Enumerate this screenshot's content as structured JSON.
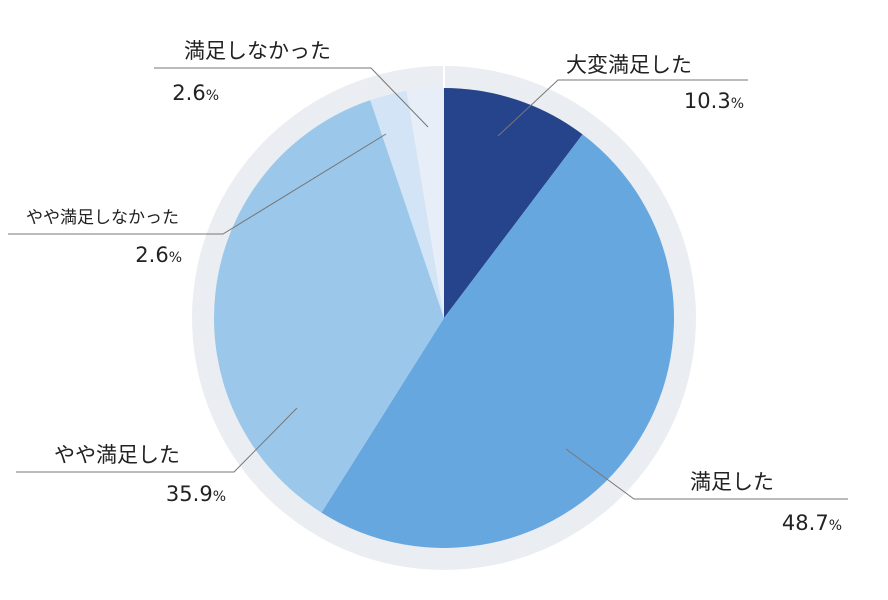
{
  "chart_data": {
    "type": "pie",
    "start_angle_deg": 0,
    "direction": "clockwise",
    "unit": "%",
    "slices": [
      {
        "label": "大変満足した",
        "value": 10.3,
        "value_text": "10.3",
        "color": "#26448c"
      },
      {
        "label": "満足した",
        "value": 48.7,
        "value_text": "48.7",
        "color": "#67a7df"
      },
      {
        "label": "やや満足した",
        "value": 35.9,
        "value_text": "35.9",
        "color": "#9bc8ea"
      },
      {
        "label": "やや満足しなかった",
        "value": 2.6,
        "value_text": "2.6",
        "color": "#d3e4f6"
      },
      {
        "label": "満足しなかった",
        "value": 2.6,
        "value_text": "2.6",
        "color": "#e7eef8"
      }
    ],
    "ring_color": "#eaedf1"
  }
}
